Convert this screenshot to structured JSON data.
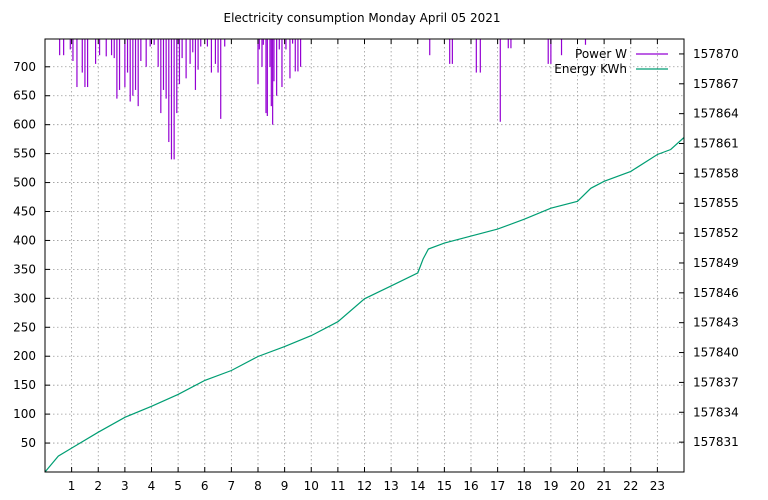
{
  "chart_data": {
    "type": "line",
    "title": "Electricity consumption Monday April 05 2021",
    "xlim": [
      0,
      24
    ],
    "x_ticks": [
      "1",
      "2",
      "3",
      "4",
      "5",
      "6",
      "7",
      "8",
      "9",
      "10",
      "11",
      "12",
      "13",
      "14",
      "15",
      "16",
      "17",
      "18",
      "19",
      "20",
      "21",
      "22",
      "23"
    ],
    "y_left": {
      "lim": [
        0,
        748
      ],
      "ticks": [
        "50",
        "100",
        "150",
        "200",
        "250",
        "300",
        "350",
        "400",
        "450",
        "500",
        "550",
        "600",
        "650",
        "700"
      ]
    },
    "y_right": {
      "lim": [
        157828,
        157871.5
      ],
      "ticks": [
        "157831",
        "157834",
        "157837",
        "157840",
        "157843",
        "157846",
        "157849",
        "157852",
        "157855",
        "157858",
        "157861",
        "157864",
        "157867",
        "157870"
      ]
    },
    "grid": true,
    "legend_position": "top-right",
    "series": [
      {
        "name": "Power W",
        "axis": "left",
        "color": "#9400d3",
        "style": "impulse-from-top",
        "points": [
          [
            0.55,
            720
          ],
          [
            0.7,
            720
          ],
          [
            0.95,
            730
          ],
          [
            1.05,
            710
          ],
          [
            1.2,
            665
          ],
          [
            1.4,
            690
          ],
          [
            1.5,
            665
          ],
          [
            1.6,
            665
          ],
          [
            1.9,
            705
          ],
          [
            2.05,
            720
          ],
          [
            2.3,
            718
          ],
          [
            2.5,
            720
          ],
          [
            2.6,
            715
          ],
          [
            2.7,
            645
          ],
          [
            2.8,
            660
          ],
          [
            3.0,
            665
          ],
          [
            3.1,
            690
          ],
          [
            3.2,
            640
          ],
          [
            3.3,
            650
          ],
          [
            3.4,
            660
          ],
          [
            3.5,
            632
          ],
          [
            3.6,
            710
          ],
          [
            3.8,
            700
          ],
          [
            3.95,
            735
          ],
          [
            4.1,
            738
          ],
          [
            4.25,
            700
          ],
          [
            4.35,
            620
          ],
          [
            4.45,
            660
          ],
          [
            4.55,
            645
          ],
          [
            4.65,
            570
          ],
          [
            4.75,
            540
          ],
          [
            4.85,
            540
          ],
          [
            4.95,
            620
          ],
          [
            5.05,
            670
          ],
          [
            5.15,
            715
          ],
          [
            5.3,
            680
          ],
          [
            5.45,
            705
          ],
          [
            5.55,
            725
          ],
          [
            5.65,
            660
          ],
          [
            5.75,
            695
          ],
          [
            5.85,
            735
          ],
          [
            6.1,
            735
          ],
          [
            6.25,
            690
          ],
          [
            6.4,
            705
          ],
          [
            6.5,
            690
          ],
          [
            6.6,
            610
          ],
          [
            6.75,
            735
          ],
          [
            8.0,
            670
          ],
          [
            8.05,
            730
          ],
          [
            8.15,
            700
          ],
          [
            8.2,
            738
          ],
          [
            8.3,
            620
          ],
          [
            8.35,
            615
          ],
          [
            8.45,
            700
          ],
          [
            8.5,
            632
          ],
          [
            8.55,
            600
          ],
          [
            8.6,
            675
          ],
          [
            8.7,
            650
          ],
          [
            8.8,
            730
          ],
          [
            8.9,
            665
          ],
          [
            9.05,
            730
          ],
          [
            9.2,
            680
          ],
          [
            9.3,
            740
          ],
          [
            9.4,
            692
          ],
          [
            9.5,
            692
          ],
          [
            9.6,
            700
          ],
          [
            14.45,
            720
          ],
          [
            15.2,
            705
          ],
          [
            15.3,
            705
          ],
          [
            16.2,
            690
          ],
          [
            16.35,
            690
          ],
          [
            17.1,
            605
          ],
          [
            17.4,
            732
          ],
          [
            17.5,
            732
          ],
          [
            18.9,
            705
          ],
          [
            19.0,
            705
          ],
          [
            19.4,
            720
          ],
          [
            20.3,
            738
          ]
        ]
      },
      {
        "name": "Energy KWh",
        "axis": "right",
        "color": "#009e73",
        "style": "line",
        "points": [
          [
            0,
            157828.0
          ],
          [
            0.5,
            157829.6
          ],
          [
            1,
            157830.4
          ],
          [
            2,
            157832.0
          ],
          [
            3,
            157833.5
          ],
          [
            4,
            157834.6
          ],
          [
            5,
            157835.8
          ],
          [
            6,
            157837.2
          ],
          [
            7,
            157838.2
          ],
          [
            8,
            157839.6
          ],
          [
            9,
            157840.6
          ],
          [
            10,
            157841.7
          ],
          [
            11,
            157843.1
          ],
          [
            12,
            157845.4
          ],
          [
            13,
            157846.7
          ],
          [
            14,
            157848.0
          ],
          [
            14.2,
            157849.4
          ],
          [
            14.4,
            157850.4
          ],
          [
            15,
            157851.0
          ],
          [
            16,
            157851.7
          ],
          [
            17,
            157852.4
          ],
          [
            18,
            157853.4
          ],
          [
            19,
            157854.5
          ],
          [
            20,
            157855.2
          ],
          [
            20.5,
            157856.5
          ],
          [
            21,
            157857.2
          ],
          [
            22,
            157858.2
          ],
          [
            23,
            157859.9
          ],
          [
            23.5,
            157860.4
          ],
          [
            24,
            157861.6
          ]
        ]
      }
    ]
  }
}
